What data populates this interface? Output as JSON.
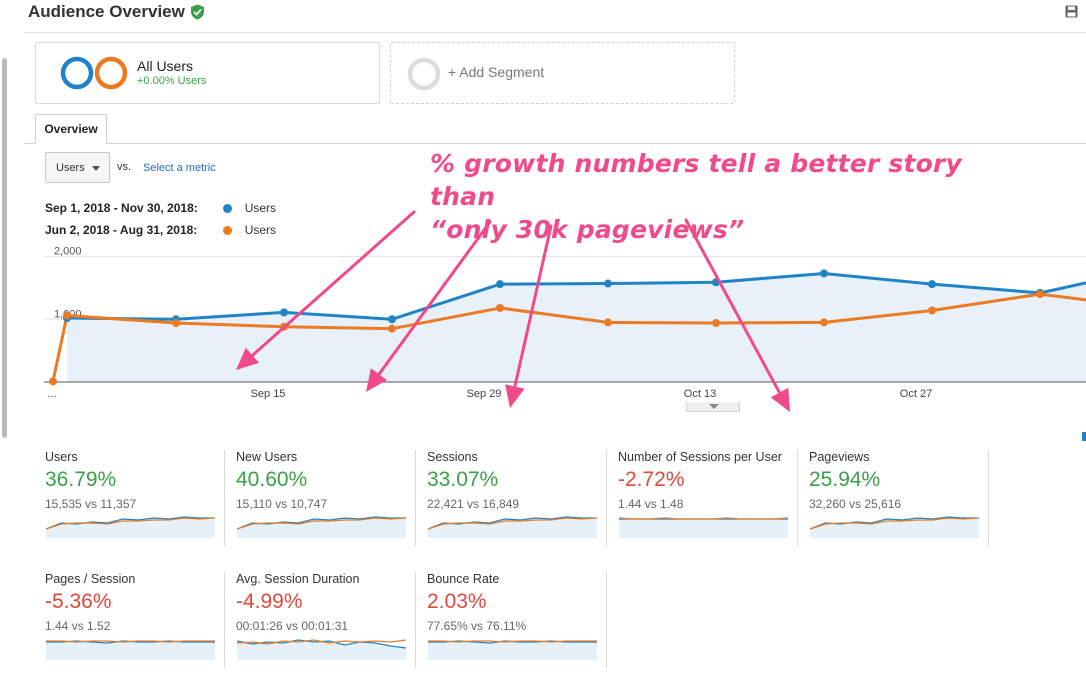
{
  "header": {
    "title": "Audience Overview"
  },
  "segments": {
    "primary": {
      "name": "All Users",
      "sub": "+0.00% Users"
    },
    "add_label": "+ Add Segment"
  },
  "tabs": [
    {
      "label": "Overview"
    }
  ],
  "metric_picker": {
    "selected": "Users",
    "vs_label": "vs.",
    "select_metric": "Select a metric"
  },
  "legend": [
    {
      "date_range": "Sep 1, 2018 - Nov 30, 2018:",
      "metric": "Users",
      "color": "#1f84c7"
    },
    {
      "date_range": "Jun 2, 2018 - Aug 31, 2018:",
      "metric": "Users",
      "color": "#ec7a23"
    }
  ],
  "chart_data": {
    "type": "line",
    "y_ticks": [
      "2,000",
      "1,000"
    ],
    "ylim": [
      0,
      2200
    ],
    "x_tick_labels": [
      "...",
      "Sep 15",
      "Sep 29",
      "Oct 13",
      "Oct 27"
    ],
    "x": [
      "Sep 1",
      "Sep 8",
      "Sep 15",
      "Sep 22",
      "Sep 29",
      "Oct 6",
      "Oct 13",
      "Oct 20",
      "Oct 27",
      "Nov 3",
      "Nov 10"
    ],
    "series": [
      {
        "name": "Users",
        "period": "Sep 1, 2018 - Nov 30, 2018",
        "color": "#1f84c7",
        "fill": "#e8f1fa",
        "values": [
          1020,
          1000,
          1110,
          1000,
          1560,
          1570,
          1590,
          1730,
          1560,
          1420,
          1580
        ]
      },
      {
        "name": "Users",
        "period": "Jun 2, 2018 - Aug 31, 2018",
        "color": "#ec7a23",
        "values": [
          1060,
          940,
          880,
          850,
          1180,
          950,
          940,
          950,
          1140,
          1400,
          1310
        ],
        "start_value": 10
      }
    ],
    "grid": true
  },
  "metrics": [
    {
      "label": "Users",
      "change": "36.79%",
      "direction": "up",
      "compare": "15,535 vs 11,357"
    },
    {
      "label": "New Users",
      "change": "40.60%",
      "direction": "up",
      "compare": "15,110 vs 10,747"
    },
    {
      "label": "Sessions",
      "change": "33.07%",
      "direction": "up",
      "compare": "22,421 vs 16,849"
    },
    {
      "label": "Number of Sessions per User",
      "change": "-2.72%",
      "direction": "down",
      "compare": "1.44 vs 1.48"
    },
    {
      "label": "Pageviews",
      "change": "25.94%",
      "direction": "up",
      "compare": "32,260 vs 25,616"
    },
    {
      "label": "Pages / Session",
      "change": "-5.36%",
      "direction": "down",
      "compare": "1.44 vs 1.52"
    },
    {
      "label": "Avg. Session Duration",
      "change": "-4.99%",
      "direction": "down",
      "compare": "00:01:26 vs 00:01:31"
    },
    {
      "label": "Bounce Rate",
      "change": "2.03%",
      "direction": "down",
      "compare": "77.65% vs 76.11%"
    }
  ],
  "annotation": {
    "line1": "% growth numbers tell a better story than",
    "line2": "“only 30k pageviews”",
    "color": "#f0498c"
  },
  "icons": {
    "verified": "verified-shield-icon",
    "save": "save-disk-icon"
  }
}
